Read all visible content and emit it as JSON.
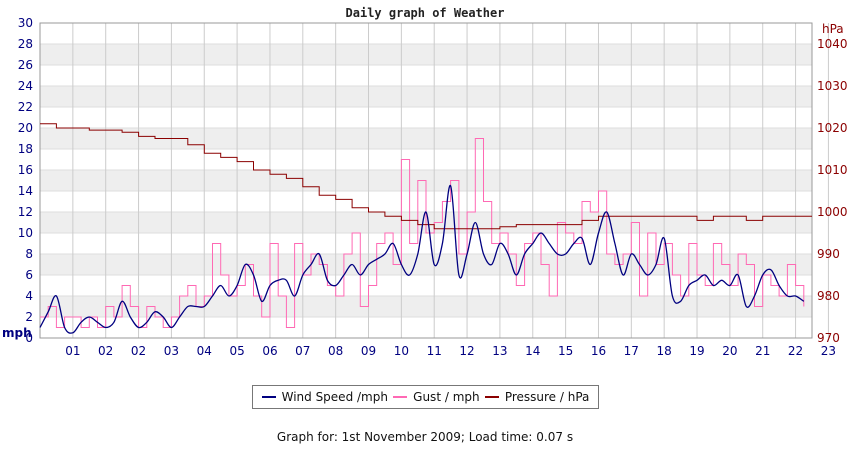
{
  "chart_data": {
    "type": "line",
    "title": "Daily graph of Weather",
    "left_unit": "mph",
    "right_unit": "hPa",
    "x_tick_labels": [
      "01",
      "02",
      "02",
      "03",
      "04",
      "05",
      "06",
      "07",
      "08",
      "09",
      "10",
      "11",
      "12",
      "13",
      "14",
      "15",
      "16",
      "17",
      "18",
      "19",
      "20",
      "21",
      "22",
      "23"
    ],
    "x_range_hours": [
      0,
      23.5
    ],
    "left_axis": {
      "ylim": [
        0,
        30
      ],
      "ticks": [
        0,
        2,
        4,
        6,
        8,
        10,
        12,
        14,
        16,
        18,
        20,
        22,
        24,
        26,
        28,
        30
      ]
    },
    "right_axis": {
      "ylim": [
        970,
        1045
      ],
      "ticks": [
        970,
        980,
        990,
        1000,
        1010,
        1020,
        1030,
        1040
      ]
    },
    "grid": "on",
    "legend_placement": "bottom-center",
    "series": [
      {
        "name": "Wind Speed /mph",
        "axis": "left",
        "color": "#000080",
        "x": [
          0,
          0.25,
          0.5,
          0.75,
          1,
          1.25,
          1.5,
          1.75,
          2,
          2.25,
          2.5,
          2.75,
          3,
          3.25,
          3.5,
          3.75,
          4,
          4.25,
          4.5,
          4.75,
          5,
          5.25,
          5.5,
          5.75,
          6,
          6.25,
          6.5,
          6.75,
          7,
          7.25,
          7.5,
          7.75,
          8,
          8.25,
          8.5,
          8.75,
          9,
          9.25,
          9.5,
          9.75,
          10,
          10.25,
          10.5,
          10.75,
          11,
          11.25,
          11.5,
          11.75,
          12,
          12.25,
          12.5,
          12.75,
          13,
          13.25,
          13.5,
          13.75,
          14,
          14.25,
          14.5,
          14.75,
          15,
          15.25,
          15.5,
          15.75,
          16,
          16.25,
          16.5,
          16.75,
          17,
          17.25,
          17.5,
          17.75,
          18,
          18.25,
          18.5,
          18.75,
          19,
          19.25,
          19.5,
          19.75,
          20,
          20.25,
          20.5,
          20.75,
          21,
          21.25,
          21.5,
          21.75,
          22,
          22.25,
          22.5,
          22.75,
          23,
          23.25
        ],
        "values": [
          1,
          2.5,
          4,
          1,
          0.5,
          1.5,
          2,
          1.5,
          1,
          1.5,
          3.5,
          2,
          1,
          1.5,
          2.5,
          2,
          1,
          2,
          3,
          3,
          3,
          4,
          5,
          4,
          5,
          7,
          6,
          3.5,
          5,
          5.5,
          5.5,
          4,
          6,
          7,
          8,
          5.5,
          5,
          6,
          7,
          6,
          7,
          7.5,
          8,
          9,
          7,
          6,
          8,
          12,
          7,
          9,
          14.5,
          6,
          8,
          11,
          8,
          7,
          9,
          8,
          6,
          8,
          9,
          10,
          9,
          8,
          8,
          9,
          9.5,
          7,
          10,
          12,
          9,
          6,
          8,
          7,
          6,
          7,
          9.5,
          4,
          3.5,
          5,
          5.5,
          6,
          5,
          5.5,
          5,
          6,
          3,
          4,
          6,
          6.5,
          5,
          4,
          4,
          3.5
        ]
      },
      {
        "name": "Gust / mph",
        "axis": "left",
        "color": "#ff69b4",
        "x": [
          0,
          0.25,
          0.5,
          0.75,
          1,
          1.25,
          1.5,
          1.75,
          2,
          2.25,
          2.5,
          2.75,
          3,
          3.25,
          3.5,
          3.75,
          4,
          4.25,
          4.5,
          4.75,
          5,
          5.25,
          5.5,
          5.75,
          6,
          6.25,
          6.5,
          6.75,
          7,
          7.25,
          7.5,
          7.75,
          8,
          8.25,
          8.5,
          8.75,
          9,
          9.25,
          9.5,
          9.75,
          10,
          10.25,
          10.5,
          10.75,
          11,
          11.25,
          11.5,
          11.75,
          12,
          12.25,
          12.5,
          12.75,
          13,
          13.25,
          13.5,
          13.75,
          14,
          14.25,
          14.5,
          14.75,
          15,
          15.25,
          15.5,
          15.75,
          16,
          16.25,
          16.5,
          16.75,
          17,
          17.25,
          17.5,
          17.75,
          18,
          18.25,
          18.5,
          18.75,
          19,
          19.25,
          19.5,
          19.75,
          20,
          20.25,
          20.5,
          20.75,
          21,
          21.25,
          21.5,
          21.75,
          22,
          22.25,
          22.5,
          22.75,
          23,
          23.25
        ],
        "values": [
          2,
          3,
          1,
          2,
          2,
          1,
          2,
          1,
          3,
          2,
          5,
          3,
          1,
          3,
          2,
          1,
          2,
          4,
          5,
          3,
          4,
          9,
          6,
          4,
          5,
          7,
          4,
          2,
          9,
          4,
          1,
          9,
          6,
          8,
          7,
          5,
          4,
          8,
          10,
          3,
          5,
          9,
          10,
          7,
          17,
          9,
          15,
          10,
          11,
          13,
          15,
          8,
          12,
          19,
          13,
          9,
          10,
          8,
          5,
          9,
          10,
          7,
          4,
          11,
          10,
          9,
          13,
          12,
          14,
          8,
          7,
          8,
          11,
          4,
          10,
          7,
          9,
          6,
          4,
          9,
          6,
          5,
          9,
          7,
          5,
          8,
          7,
          3,
          6,
          5,
          4,
          7,
          5,
          3
        ]
      },
      {
        "name": "Pressure / hPa",
        "axis": "right",
        "color": "#8b0000",
        "x": [
          0,
          0.5,
          1,
          1.5,
          2,
          2.5,
          3,
          3.5,
          4,
          4.5,
          5,
          5.5,
          6,
          6.5,
          7,
          7.5,
          8,
          8.5,
          9,
          9.5,
          10,
          10.5,
          11,
          11.5,
          12,
          12.5,
          13,
          13.5,
          14,
          14.5,
          15,
          15.5,
          16,
          16.5,
          17,
          17.5,
          18,
          18.5,
          19,
          19.5,
          20,
          20.5,
          21,
          21.5,
          22,
          22.5,
          23,
          23.5
        ],
        "values": [
          1021,
          1020,
          1020,
          1019.5,
          1019.5,
          1019,
          1018,
          1017.5,
          1017.5,
          1016,
          1014,
          1013,
          1012,
          1010,
          1009,
          1008,
          1006,
          1004,
          1003,
          1001,
          1000,
          999,
          998,
          997,
          996,
          996,
          996,
          996,
          996.5,
          997,
          997,
          997,
          997,
          998,
          999,
          999,
          999,
          999,
          999,
          999,
          998,
          999,
          999,
          998,
          999,
          999,
          999,
          999
        ]
      }
    ]
  },
  "legend": {
    "items": [
      {
        "label": "Wind Speed /mph",
        "color": "#000080"
      },
      {
        "label": "Gust / mph",
        "color": "#ff69b4"
      },
      {
        "label": "Pressure / hPa",
        "color": "#8b0000"
      }
    ]
  },
  "footer": {
    "text": "Graph for: 1st November 2009; Load time: 0.07 s"
  }
}
